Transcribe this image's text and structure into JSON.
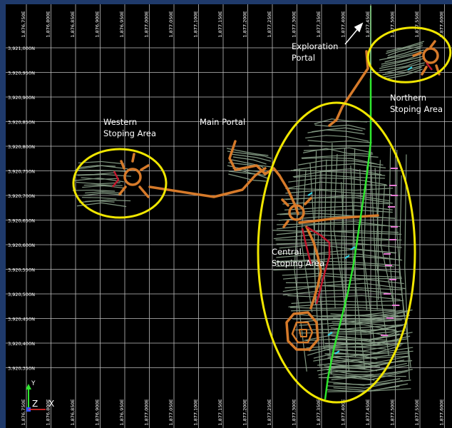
{
  "labels": {
    "exploration_portal": [
      "Exploration",
      "Portal"
    ],
    "northern_area": [
      "Northern",
      "Stoping Area"
    ],
    "western_area": [
      "Western",
      "Stoping Area"
    ],
    "main_portal": "Main Portal",
    "central_area": [
      "Central",
      "Stoping Area"
    ]
  },
  "grid": {
    "eastings": [
      "1,876,750E",
      "1,876,800E",
      "1,876,850E",
      "1,876,900E",
      "1,876,950E",
      "1,877,000E",
      "1,877,050E",
      "1,877,100E",
      "1,877,150E",
      "1,877,200E",
      "1,877,250E",
      "1,877,300E",
      "1,877,350E",
      "1,877,400E",
      "1,877,450E",
      "1,877,500E",
      "1,877,550E",
      "1,877,600E"
    ],
    "northings": [
      "3,921,000N",
      "3,920,950N",
      "3,920,900N",
      "3,920,850N",
      "3,920,800N",
      "3,920,750N",
      "3,920,700N",
      "3,920,650N",
      "3,920,600N",
      "3,920,550N",
      "3,920,500N",
      "3,920,450N",
      "3,920,400N",
      "3,920,350N"
    ]
  },
  "axes": {
    "z_label": "Z",
    "x_label": "X",
    "y_label": "Y"
  },
  "colors": {
    "background": "#000000",
    "frame": "#1f3a6b",
    "grid": "#bfbfbf",
    "ellipse": "#f0e600",
    "stopes": "#8fa88f",
    "decline": "#d67a2a",
    "red_drives": "#c0172d",
    "vent_green": "#2ee82e",
    "text": "#ffffff"
  }
}
